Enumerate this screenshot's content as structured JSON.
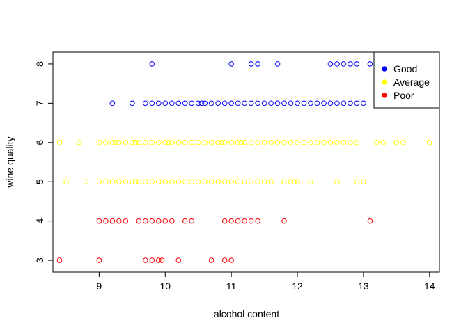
{
  "chart_data": {
    "type": "scatter",
    "xlabel": "alcohol content",
    "ylabel": "wine quality",
    "xlim": [
      8.3,
      14.15
    ],
    "ylim": [
      2.7,
      8.3
    ],
    "x_ticks": [
      9,
      10,
      11,
      12,
      13,
      14
    ],
    "y_ticks": [
      3,
      4,
      5,
      6,
      7,
      8
    ],
    "grid": false,
    "legend_position": "top-right",
    "series": [
      {
        "name": "Good",
        "color": "#0000FF",
        "points": [
          {
            "x": 9.8,
            "y": 8
          },
          {
            "x": 11.0,
            "y": 8
          },
          {
            "x": 11.3,
            "y": 8
          },
          {
            "x": 11.4,
            "y": 8
          },
          {
            "x": 11.7,
            "y": 8
          },
          {
            "x": 12.5,
            "y": 8
          },
          {
            "x": 12.6,
            "y": 8
          },
          {
            "x": 12.7,
            "y": 8
          },
          {
            "x": 12.8,
            "y": 8
          },
          {
            "x": 12.9,
            "y": 8
          },
          {
            "x": 13.1,
            "y": 8
          },
          {
            "x": 9.2,
            "y": 7
          },
          {
            "x": 9.5,
            "y": 7
          },
          {
            "x": 9.7,
            "y": 7
          },
          {
            "x": 9.8,
            "y": 7
          },
          {
            "x": 9.9,
            "y": 7
          },
          {
            "x": 10.0,
            "y": 7
          },
          {
            "x": 10.1,
            "y": 7
          },
          {
            "x": 10.2,
            "y": 7
          },
          {
            "x": 10.3,
            "y": 7
          },
          {
            "x": 10.4,
            "y": 7
          },
          {
            "x": 10.5,
            "y": 7
          },
          {
            "x": 10.55,
            "y": 7
          },
          {
            "x": 10.6,
            "y": 7
          },
          {
            "x": 10.7,
            "y": 7
          },
          {
            "x": 10.8,
            "y": 7
          },
          {
            "x": 10.9,
            "y": 7
          },
          {
            "x": 11.0,
            "y": 7
          },
          {
            "x": 11.1,
            "y": 7
          },
          {
            "x": 11.2,
            "y": 7
          },
          {
            "x": 11.3,
            "y": 7
          },
          {
            "x": 11.4,
            "y": 7
          },
          {
            "x": 11.5,
            "y": 7
          },
          {
            "x": 11.6,
            "y": 7
          },
          {
            "x": 11.7,
            "y": 7
          },
          {
            "x": 11.8,
            "y": 7
          },
          {
            "x": 11.9,
            "y": 7
          },
          {
            "x": 12.0,
            "y": 7
          },
          {
            "x": 12.1,
            "y": 7
          },
          {
            "x": 12.2,
            "y": 7
          },
          {
            "x": 12.3,
            "y": 7
          },
          {
            "x": 12.4,
            "y": 7
          },
          {
            "x": 12.5,
            "y": 7
          },
          {
            "x": 12.6,
            "y": 7
          },
          {
            "x": 12.7,
            "y": 7
          },
          {
            "x": 12.8,
            "y": 7
          },
          {
            "x": 12.9,
            "y": 7
          },
          {
            "x": 13.0,
            "y": 7
          }
        ]
      },
      {
        "name": "Average",
        "color": "#FFFF00",
        "points": [
          {
            "x": 8.4,
            "y": 6
          },
          {
            "x": 8.7,
            "y": 6
          },
          {
            "x": 9.0,
            "y": 6
          },
          {
            "x": 9.1,
            "y": 6
          },
          {
            "x": 9.2,
            "y": 6
          },
          {
            "x": 9.25,
            "y": 6
          },
          {
            "x": 9.3,
            "y": 6
          },
          {
            "x": 9.4,
            "y": 6
          },
          {
            "x": 9.5,
            "y": 6
          },
          {
            "x": 9.55,
            "y": 6
          },
          {
            "x": 9.6,
            "y": 6
          },
          {
            "x": 9.7,
            "y": 6
          },
          {
            "x": 9.8,
            "y": 6
          },
          {
            "x": 9.9,
            "y": 6
          },
          {
            "x": 10.0,
            "y": 6
          },
          {
            "x": 10.05,
            "y": 6
          },
          {
            "x": 10.1,
            "y": 6
          },
          {
            "x": 10.2,
            "y": 6
          },
          {
            "x": 10.3,
            "y": 6
          },
          {
            "x": 10.4,
            "y": 6
          },
          {
            "x": 10.5,
            "y": 6
          },
          {
            "x": 10.6,
            "y": 6
          },
          {
            "x": 10.7,
            "y": 6
          },
          {
            "x": 10.8,
            "y": 6
          },
          {
            "x": 10.85,
            "y": 6
          },
          {
            "x": 10.9,
            "y": 6
          },
          {
            "x": 11.0,
            "y": 6
          },
          {
            "x": 11.1,
            "y": 6
          },
          {
            "x": 11.15,
            "y": 6
          },
          {
            "x": 11.2,
            "y": 6
          },
          {
            "x": 11.3,
            "y": 6
          },
          {
            "x": 11.4,
            "y": 6
          },
          {
            "x": 11.5,
            "y": 6
          },
          {
            "x": 11.6,
            "y": 6
          },
          {
            "x": 11.7,
            "y": 6
          },
          {
            "x": 11.8,
            "y": 6
          },
          {
            "x": 11.9,
            "y": 6
          },
          {
            "x": 12.0,
            "y": 6
          },
          {
            "x": 12.1,
            "y": 6
          },
          {
            "x": 12.2,
            "y": 6
          },
          {
            "x": 12.3,
            "y": 6
          },
          {
            "x": 12.4,
            "y": 6
          },
          {
            "x": 12.5,
            "y": 6
          },
          {
            "x": 12.6,
            "y": 6
          },
          {
            "x": 12.7,
            "y": 6
          },
          {
            "x": 12.8,
            "y": 6
          },
          {
            "x": 12.9,
            "y": 6
          },
          {
            "x": 13.2,
            "y": 6
          },
          {
            "x": 13.3,
            "y": 6
          },
          {
            "x": 13.5,
            "y": 6
          },
          {
            "x": 13.6,
            "y": 6
          },
          {
            "x": 14.0,
            "y": 6
          },
          {
            "x": 8.5,
            "y": 5
          },
          {
            "x": 8.8,
            "y": 5
          },
          {
            "x": 9.0,
            "y": 5
          },
          {
            "x": 9.1,
            "y": 5
          },
          {
            "x": 9.2,
            "y": 5
          },
          {
            "x": 9.3,
            "y": 5
          },
          {
            "x": 9.4,
            "y": 5
          },
          {
            "x": 9.5,
            "y": 5
          },
          {
            "x": 9.55,
            "y": 5
          },
          {
            "x": 9.6,
            "y": 5
          },
          {
            "x": 9.7,
            "y": 5
          },
          {
            "x": 9.8,
            "y": 5
          },
          {
            "x": 9.9,
            "y": 5
          },
          {
            "x": 10.0,
            "y": 5
          },
          {
            "x": 10.1,
            "y": 5
          },
          {
            "x": 10.2,
            "y": 5
          },
          {
            "x": 10.3,
            "y": 5
          },
          {
            "x": 10.4,
            "y": 5
          },
          {
            "x": 10.5,
            "y": 5
          },
          {
            "x": 10.6,
            "y": 5
          },
          {
            "x": 10.7,
            "y": 5
          },
          {
            "x": 10.8,
            "y": 5
          },
          {
            "x": 10.9,
            "y": 5
          },
          {
            "x": 11.0,
            "y": 5
          },
          {
            "x": 11.1,
            "y": 5
          },
          {
            "x": 11.2,
            "y": 5
          },
          {
            "x": 11.3,
            "y": 5
          },
          {
            "x": 11.4,
            "y": 5
          },
          {
            "x": 11.5,
            "y": 5
          },
          {
            "x": 11.6,
            "y": 5
          },
          {
            "x": 11.8,
            "y": 5
          },
          {
            "x": 11.9,
            "y": 5
          },
          {
            "x": 11.95,
            "y": 5
          },
          {
            "x": 12.0,
            "y": 5
          },
          {
            "x": 12.2,
            "y": 5
          },
          {
            "x": 12.6,
            "y": 5
          },
          {
            "x": 12.9,
            "y": 5
          },
          {
            "x": 13.0,
            "y": 5
          }
        ]
      },
      {
        "name": "Poor",
        "color": "#FF0000",
        "points": [
          {
            "x": 9.0,
            "y": 4
          },
          {
            "x": 9.1,
            "y": 4
          },
          {
            "x": 9.2,
            "y": 4
          },
          {
            "x": 9.3,
            "y": 4
          },
          {
            "x": 9.4,
            "y": 4
          },
          {
            "x": 9.6,
            "y": 4
          },
          {
            "x": 9.7,
            "y": 4
          },
          {
            "x": 9.8,
            "y": 4
          },
          {
            "x": 9.9,
            "y": 4
          },
          {
            "x": 10.0,
            "y": 4
          },
          {
            "x": 10.1,
            "y": 4
          },
          {
            "x": 10.3,
            "y": 4
          },
          {
            "x": 10.4,
            "y": 4
          },
          {
            "x": 10.9,
            "y": 4
          },
          {
            "x": 11.0,
            "y": 4
          },
          {
            "x": 11.1,
            "y": 4
          },
          {
            "x": 11.2,
            "y": 4
          },
          {
            "x": 11.3,
            "y": 4
          },
          {
            "x": 11.4,
            "y": 4
          },
          {
            "x": 11.8,
            "y": 4
          },
          {
            "x": 13.1,
            "y": 4
          },
          {
            "x": 8.4,
            "y": 3
          },
          {
            "x": 9.0,
            "y": 3
          },
          {
            "x": 9.7,
            "y": 3
          },
          {
            "x": 9.8,
            "y": 3
          },
          {
            "x": 9.9,
            "y": 3
          },
          {
            "x": 9.95,
            "y": 3
          },
          {
            "x": 10.2,
            "y": 3
          },
          {
            "x": 10.7,
            "y": 3
          },
          {
            "x": 10.9,
            "y": 3
          },
          {
            "x": 11.0,
            "y": 3
          }
        ]
      }
    ]
  }
}
